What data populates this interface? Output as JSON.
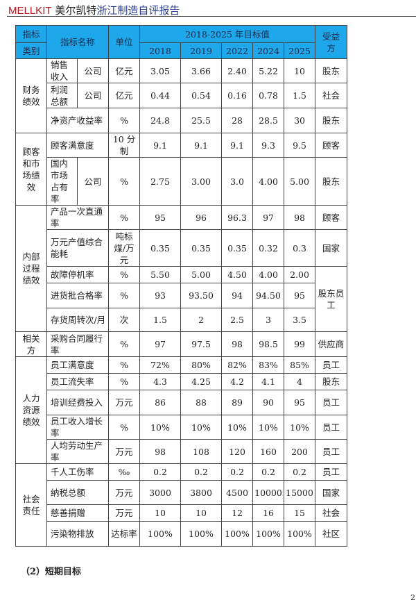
{
  "header": {
    "brand": "MELLKIT",
    "company": "美尔凯特",
    "report": "浙江制造自评报告"
  },
  "table": {
    "head": {
      "category_top": "指标",
      "category_bottom": "类别",
      "name": "指标名称",
      "unit": "单位",
      "target": "2018-2025 年目标值",
      "beneficiary": "受益方",
      "years": [
        "2018",
        "2019",
        "2022",
        "2024",
        "2025"
      ]
    },
    "rows": [
      {
        "category": "财务绩效",
        "cat_span": 3,
        "name": "销售收入",
        "sub": "公司",
        "unit": "亿元",
        "values": [
          "3.05",
          "3.66",
          "2.40",
          "5.22",
          "10"
        ],
        "beneficiary": "股东"
      },
      {
        "name": "利润总额",
        "sub": "公司",
        "unit": "亿元",
        "values": [
          "0.44",
          "0.54",
          "0.16",
          "0.78",
          "1.5"
        ],
        "beneficiary": "社会"
      },
      {
        "name": "净资产收益率",
        "unit": "%",
        "values": [
          "24.8",
          "25.5",
          "28",
          "28.5",
          "30"
        ],
        "beneficiary": "股东"
      },
      {
        "category": "顾客和市场绩效",
        "cat_span": 2,
        "name": "顾客满意度",
        "unit": "10 分制",
        "values": [
          "9.1",
          "9.1",
          "9.1",
          "9.3",
          "9.5"
        ],
        "beneficiary": "顾客"
      },
      {
        "name": "国内市场占有率",
        "sub": "公司",
        "unit": "%",
        "values": [
          "2.75",
          "3.00",
          "3.0",
          "4.00",
          "5.00"
        ],
        "beneficiary": "股东"
      },
      {
        "category": "内部过程绩效",
        "cat_span": 5,
        "name": "产品一次直通率",
        "unit": "%",
        "values": [
          "95",
          "96",
          "96.3",
          "97",
          "98"
        ],
        "beneficiary": "顾客"
      },
      {
        "name": "万元产值综合能耗",
        "unit": "吨标煤/万元",
        "values": [
          "0.35",
          "0.35",
          "0.35",
          "0.32",
          "0.3"
        ],
        "beneficiary": "国家"
      },
      {
        "name": "故障停机率",
        "unit": "%",
        "values": [
          "5.50",
          "5.00",
          "4.50",
          "4.00",
          "2.00"
        ],
        "beneficiary": "股东员工",
        "ben_span": 3
      },
      {
        "name": "进货批合格率",
        "unit": "%",
        "values": [
          "93",
          "93.50",
          "94",
          "94.50",
          "95"
        ]
      },
      {
        "name": "存货周转次/月",
        "unit": "次",
        "values": [
          "1.5",
          "2",
          "2.5",
          "3",
          "3.5"
        ]
      },
      {
        "category": "相关方",
        "cat_span": 1,
        "name": "采购合同履行率",
        "unit": "%",
        "values": [
          "97",
          "97.5",
          "98",
          "98.5",
          "99"
        ],
        "beneficiary": "供应商"
      },
      {
        "category": "人力资源绩效",
        "cat_span": 5,
        "name": "员工满意度",
        "unit": "%",
        "values": [
          "72%",
          "80%",
          "82%",
          "83%",
          "85%"
        ],
        "beneficiary": "员工"
      },
      {
        "name": "员工流失率",
        "unit": "%",
        "values": [
          "4.3",
          "4.25",
          "4.2",
          "4.1",
          "4"
        ],
        "beneficiary": "股东"
      },
      {
        "name": "培训经费投入",
        "unit": "万元",
        "values": [
          "86",
          "88",
          "89",
          "90",
          "95"
        ],
        "beneficiary": "员工"
      },
      {
        "name": "员工收入增长率",
        "unit": "%",
        "values": [
          "10%",
          "10%",
          "10%",
          "10%",
          "10%"
        ],
        "beneficiary": "员工"
      },
      {
        "name": "人均劳动生产率",
        "unit": "万元",
        "values": [
          "98",
          "108",
          "120",
          "160",
          "200"
        ],
        "beneficiary": "员工"
      },
      {
        "category": "社会责任",
        "cat_span": 4,
        "name": "千人工伤率",
        "unit": "‰",
        "values": [
          "0.2",
          "0.2",
          "0.2",
          "0.2",
          "0.2"
        ],
        "beneficiary": "员工"
      },
      {
        "name": "纳税总额",
        "unit": "万元",
        "values": [
          "3000",
          "3800",
          "4500",
          "10000",
          "15000"
        ],
        "beneficiary": "国家"
      },
      {
        "name": "慈善捐赠",
        "unit": "万元",
        "values": [
          "10",
          "10",
          "12",
          "16",
          "15"
        ],
        "beneficiary": "社会"
      },
      {
        "name": "污染物排放",
        "unit": "达标率",
        "values": [
          "100%",
          "100%",
          "100%",
          "100%",
          "100%"
        ],
        "beneficiary": "社区"
      }
    ]
  },
  "section_title": "（2）短期目标",
  "page_number": "2"
}
